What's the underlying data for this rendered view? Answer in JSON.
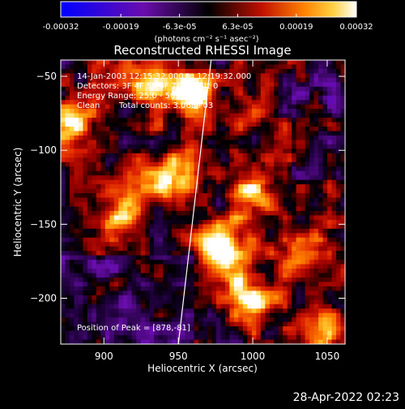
{
  "chart_data": {
    "type": "heatmap",
    "title": "Reconstructed RHESSI Image",
    "xlabel": "Heliocentric X (arcsec)",
    "ylabel": "Heliocentric Y (arcsec)",
    "xlim": [
      871,
      1062
    ],
    "ylim": [
      -231,
      -39
    ],
    "x_ticks": [
      900,
      950,
      1000,
      1050
    ],
    "y_ticks": [
      -50,
      -100,
      -150,
      -200
    ],
    "colorbar": {
      "min": -0.00032,
      "max": 0.00032,
      "tick_values": [
        -0.00032,
        -0.00019,
        -6.3e-05,
        6.3e-05,
        0.00019,
        0.00032
      ],
      "tick_labels": [
        "-0.00032",
        "-0.00019",
        "-6.3e-05",
        "6.3e-05",
        "0.00019",
        "0.00032"
      ],
      "unit_label": "(photons cm⁻² s⁻¹ asec⁻²)"
    },
    "annotations": {
      "time_range": "14-Jan-2003 12:15:32.000 to 12:19:32.000",
      "detectors": "Detectors: 3F 4F 5F 6F 7F 8F, Att 0",
      "energy_range": "Energy Range: 25.0 - 50.0 keV",
      "method": "Clean",
      "total_counts": "Total counts: 3.06E+03",
      "peak_position": "Position of Peak = [878,-81]"
    },
    "limb_line": {
      "x_top": 972,
      "y_top": -39,
      "x_bottom": 950,
      "y_bottom": -231
    },
    "bright_regions": [
      {
        "x": 958,
        "y": -62,
        "level": 1.0
      },
      {
        "x": 878,
        "y": -81,
        "level": 1.0
      },
      {
        "x": 945,
        "y": -120,
        "level": 0.85
      },
      {
        "x": 985,
        "y": -175,
        "level": 0.95
      },
      {
        "x": 975,
        "y": -160,
        "level": 0.8
      },
      {
        "x": 1000,
        "y": -200,
        "level": 0.8
      },
      {
        "x": 1045,
        "y": -225,
        "level": 0.7
      },
      {
        "x": 1000,
        "y": -130,
        "level": 0.7
      },
      {
        "x": 915,
        "y": -140,
        "level": 0.6
      },
      {
        "x": 930,
        "y": -55,
        "level": 0.6
      },
      {
        "x": 1030,
        "y": -170,
        "level": 0.55
      }
    ]
  },
  "footer": {
    "timestamp": "28-Apr-2022 02:23"
  }
}
